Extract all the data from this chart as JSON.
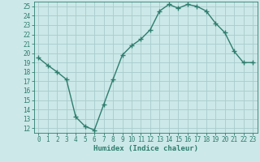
{
  "x": [
    0,
    1,
    2,
    3,
    4,
    5,
    6,
    7,
    8,
    9,
    10,
    11,
    12,
    13,
    14,
    15,
    16,
    17,
    18,
    19,
    20,
    21,
    22,
    23
  ],
  "y": [
    19.5,
    18.7,
    18.0,
    17.2,
    13.2,
    12.2,
    11.8,
    14.5,
    17.2,
    19.8,
    20.8,
    21.5,
    22.5,
    24.5,
    25.2,
    24.8,
    25.2,
    25.0,
    24.5,
    23.2,
    22.2,
    20.2,
    19.0,
    19.0
  ],
  "xlabel": "Humidex (Indice chaleur)",
  "line_color": "#2e7d6e",
  "bg_color": "#cce8e8",
  "grid_color": "#a8cccc",
  "tick_color": "#2e7d6e",
  "label_color": "#2e7d6e",
  "ylim": [
    11.5,
    25.5
  ],
  "xlim": [
    -0.5,
    23.5
  ],
  "yticks": [
    12,
    13,
    14,
    15,
    16,
    17,
    18,
    19,
    20,
    21,
    22,
    23,
    24,
    25
  ],
  "xticks": [
    0,
    1,
    2,
    3,
    4,
    5,
    6,
    7,
    8,
    9,
    10,
    11,
    12,
    13,
    14,
    15,
    16,
    17,
    18,
    19,
    20,
    21,
    22,
    23
  ],
  "xlabel_fontsize": 6.5,
  "tick_fontsize": 5.5
}
